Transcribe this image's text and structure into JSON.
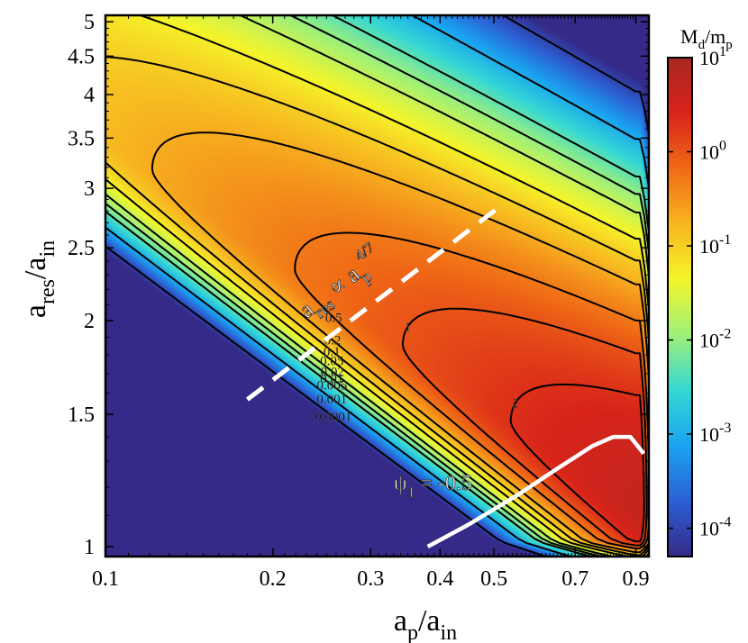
{
  "chart_data": {
    "type": "heatmap",
    "title": "",
    "xlabel": {
      "main": "a",
      "sub1": "p",
      "mid": "/a",
      "sub2": "in"
    },
    "ylabel": {
      "main": "a",
      "sub1": "res",
      "mid": "/a",
      "sub2": "in"
    },
    "x_scale": "log",
    "y_scale": "log",
    "xlim": [
      0.1,
      0.95
    ],
    "ylim": [
      0.97,
      5.1
    ],
    "x_ticks": [
      0.1,
      0.2,
      0.3,
      0.4,
      0.5,
      0.7,
      0.9
    ],
    "x_tick_labels": [
      "0.1",
      "0.2",
      "0.3",
      "0.4",
      "0.5",
      "0.7",
      "0.9"
    ],
    "y_ticks": [
      1,
      1.5,
      2,
      2.5,
      3,
      3.5,
      4,
      4.5,
      5
    ],
    "y_tick_labels": [
      "1",
      "1.5",
      "2",
      "2.5",
      "3",
      "3.5",
      "4",
      "4.5",
      "5"
    ],
    "colorbar": {
      "label": {
        "main": "M",
        "sub1": "d",
        "mid": "/m",
        "sub2": "p"
      },
      "scale": "log",
      "range": [
        5e-05,
        10
      ],
      "ticks": [
        {
          "value": 0.0001,
          "base": "10",
          "exp": "-4"
        },
        {
          "value": 0.001,
          "base": "10",
          "exp": "-3"
        },
        {
          "value": 0.01,
          "base": "10",
          "exp": "-2"
        },
        {
          "value": 0.1,
          "base": "10",
          "exp": "-1"
        },
        {
          "value": 1,
          "base": "10",
          "exp": "0"
        },
        {
          "value": 10,
          "base": "10",
          "exp": "1"
        }
      ],
      "colors": [
        "#352a87",
        "#2c5fd4",
        "#1aa3f0",
        "#35d8d4",
        "#9ff07a",
        "#f5f52a",
        "#f7b520",
        "#f06a16",
        "#d8231a",
        "#a82822"
      ]
    },
    "contour_levels": [
      {
        "value": 0.0001,
        "label": "0.0001"
      },
      {
        "value": 0.001,
        "label": "0.001"
      },
      {
        "value": 0.005,
        "label": "0.005"
      },
      {
        "value": 0.01,
        "label": "0.01"
      },
      {
        "value": 0.02,
        "label": "0.02"
      },
      {
        "value": 0.05,
        "label": "0.05"
      },
      {
        "value": 0.1,
        "label": "0.1"
      },
      {
        "value": 0.2,
        "label": "0.2"
      },
      {
        "value": 0.5,
        "label": "0.5"
      },
      {
        "value": 1,
        "label": "1"
      },
      {
        "value": 2,
        "label": "2"
      }
    ],
    "annotations": [
      {
        "kind": "dashed-line",
        "name": "scaling-relation",
        "label": {
          "main": "a",
          "sub": "res",
          "mid": " ∝ a",
          "sub2": "p",
          "sup": "4/7"
        },
        "from": [
          0.18,
          1.57
        ],
        "to": [
          0.52,
          2.86
        ]
      },
      {
        "kind": "curve",
        "name": "psi1-contour",
        "label": {
          "main": "ψ",
          "sub": "1",
          "rest": " = -0.5"
        },
        "points": [
          [
            0.38,
            1.0
          ],
          [
            0.45,
            1.07
          ],
          [
            0.55,
            1.17
          ],
          [
            0.65,
            1.27
          ],
          [
            0.75,
            1.36
          ],
          [
            0.82,
            1.4
          ],
          [
            0.88,
            1.4
          ],
          [
            0.93,
            1.33
          ]
        ]
      }
    ]
  }
}
